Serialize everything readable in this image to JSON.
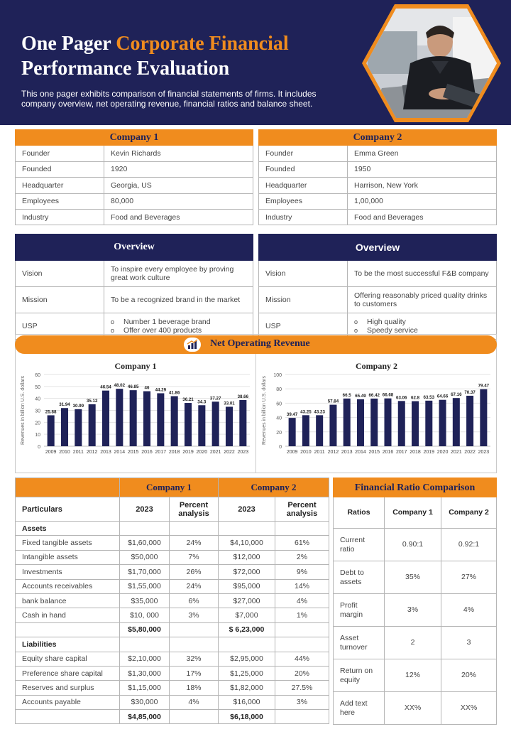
{
  "header": {
    "title_part1": "One Pager ",
    "title_accent": "Corporate Financial",
    "title_part2": "Performance Evaluation",
    "subtitle": "This one pager exhibits comparison of financial statements of firms. It includes company overview,  net operating revenue, financial ratios and balance sheet."
  },
  "colors": {
    "navy": "#1f2258",
    "orange": "#f08c1e",
    "bar": "#1f2258"
  },
  "company1": {
    "title": "Company  1",
    "rows": [
      {
        "label": "Founder",
        "value": "Kevin Richards"
      },
      {
        "label": "Founded",
        "value": "1920"
      },
      {
        "label": "Headquarter",
        "value": "Georgia, US"
      },
      {
        "label": "Employees",
        "value": "80,000"
      },
      {
        "label": "Industry",
        "value": "Food and Beverages"
      }
    ],
    "overview_title": "Overview",
    "vision_label": "Vision",
    "vision": "To inspire every employee by proving great work culture",
    "mission_label": "Mission",
    "mission": "To be a recognized brand in the market",
    "usp_label": "USP",
    "usp": [
      "Number  1 beverage brand",
      "Offer over 400 products"
    ]
  },
  "company2": {
    "title": "Company 2",
    "rows": [
      {
        "label": "Founder",
        "value": "Emma  Green"
      },
      {
        "label": "Founded",
        "value": "1950"
      },
      {
        "label": "Headquarter",
        "value": "Harrison, New York"
      },
      {
        "label": "Employees",
        "value": "1,00,000"
      },
      {
        "label": "Industry",
        "value": "Food and Beverages"
      }
    ],
    "overview_title": "Overview",
    "vision_label": "Vision",
    "vision": "To be the most successful F&B company",
    "mission_label": "Mission",
    "mission": "Offering reasonably priced quality drinks to customers",
    "usp_label": "USP",
    "usp": [
      "High quality",
      "Speedy service"
    ]
  },
  "revenue": {
    "title": "Net Operating Revenue",
    "icon": "chart-icon"
  },
  "chart_data": [
    {
      "type": "bar",
      "title": "Company 1",
      "ylabel": "Revenues in billion U.S. dollars",
      "xlabel": "",
      "ylim": [
        0,
        60
      ],
      "yticks": [
        0,
        10,
        20,
        30,
        40,
        50,
        60
      ],
      "categories": [
        "2009",
        "2010",
        "2011",
        "2012",
        "2013",
        "2014",
        "2015",
        "2016",
        "2017",
        "2018",
        "2019",
        "2020",
        "2021",
        "2022",
        "2023"
      ],
      "values": [
        25.88,
        31.94,
        30.99,
        35.12,
        46.54,
        48.02,
        46.85,
        46,
        44.29,
        41.86,
        36.21,
        34.3,
        37.27,
        33.01,
        38.66
      ],
      "labels": [
        "25.88",
        "31.94",
        "30.99",
        "35.12",
        "46.54",
        "48.02",
        "46.85",
        "46",
        "44.29",
        "41.86",
        "36.21",
        "34.3",
        "37.27",
        "33.01",
        "38.66"
      ]
    },
    {
      "type": "bar",
      "title": "Company 2",
      "ylabel": "Revenues in billion U.S. dollars",
      "xlabel": "",
      "ylim": [
        0,
        100
      ],
      "yticks": [
        0,
        20,
        40,
        60,
        80,
        100
      ],
      "categories": [
        "2009",
        "2010",
        "2011",
        "2012",
        "2013",
        "2014",
        "2015",
        "2016",
        "2017",
        "2018",
        "2019",
        "2020",
        "2021",
        "2022",
        "2023"
      ],
      "values": [
        39.47,
        43.25,
        43.23,
        57.84,
        66.5,
        65.49,
        66.42,
        66.68,
        63.06,
        62.8,
        63.53,
        64.66,
        67.16,
        70.37,
        79.47
      ],
      "labels": [
        "39.47",
        "43.25",
        "43.23",
        "57.84",
        "66.5",
        "65.49",
        "66.42",
        "66.68",
        "63.06",
        "62.8",
        "63.53",
        "64.66",
        "67.16",
        "70.37",
        "79.47"
      ]
    }
  ],
  "balance": {
    "company1_title": "Company 1",
    "company2_title": "Company 2",
    "particulars": "Particulars",
    "year": "2023",
    "percent": "Percent analysis",
    "assets_label": "Assets",
    "assets": [
      {
        "name": "Fixed tangible assets",
        "c1": "$1,60,000",
        "p1": "24%",
        "c2": "$4,10,000",
        "p2": "61%"
      },
      {
        "name": "Intangible  assets",
        "c1": "$50,000",
        "p1": "7%",
        "c2": "$12,000",
        "p2": "2%"
      },
      {
        "name": "Investments",
        "c1": "$1,70,000",
        "p1": "26%",
        "c2": "$72,000",
        "p2": "9%"
      },
      {
        "name": "Accounts receivables",
        "c1": "$1,55,000",
        "p1": "24%",
        "c2": "$95,000",
        "p2": "14%"
      },
      {
        "name": "bank balance",
        "c1": "$35,000",
        "p1": "6%",
        "c2": "$27,000",
        "p2": "4%"
      },
      {
        "name": "Cash in hand",
        "c1": "$10, 000",
        "p1": "3%",
        "c2": "$7,000",
        "p2": "1%"
      }
    ],
    "assets_total1": "$5,80,000",
    "assets_total2": "$ 6,23,000",
    "liabilities_label": "Liabilities",
    "liabilities": [
      {
        "name": "Equity  share capital",
        "c1": "$2,10,000",
        "p1": "32%",
        "c2": "$2,95,000",
        "p2": "44%"
      },
      {
        "name": "Preference share capital",
        "c1": "$1,30,000",
        "p1": "17%",
        "c2": "$1,25,000",
        "p2": "20%"
      },
      {
        "name": "Reserves and surplus",
        "c1": "$1,15,000",
        "p1": "18%",
        "c2": "$1,82,000",
        "p2": "27.5%"
      },
      {
        "name": "Accounts payable",
        "c1": "$30,000",
        "p1": "4%",
        "c2": "$16,000",
        "p2": "3%"
      }
    ],
    "liabilities_total1": "$4,85,000",
    "liabilities_total2": "$6,18,000"
  },
  "ratios": {
    "title": "Financial Ratio Comparison",
    "col_ratios": "Ratios",
    "col_c1": "Company 1",
    "col_c2": "Company 2",
    "rows": [
      {
        "name": "Current ratio",
        "c1": "0.90:1",
        "c2": "0.92:1"
      },
      {
        "name": "Debt to assets",
        "c1": "35%",
        "c2": "27%"
      },
      {
        "name": "Profit margin",
        "c1": "3%",
        "c2": "4%"
      },
      {
        "name": "Asset turnover",
        "c1": "2",
        "c2": "3"
      },
      {
        "name": "Return on equity",
        "c1": "12%",
        "c2": "20%"
      },
      {
        "name": "Add text here",
        "c1": "XX%",
        "c2": "XX%"
      }
    ]
  }
}
